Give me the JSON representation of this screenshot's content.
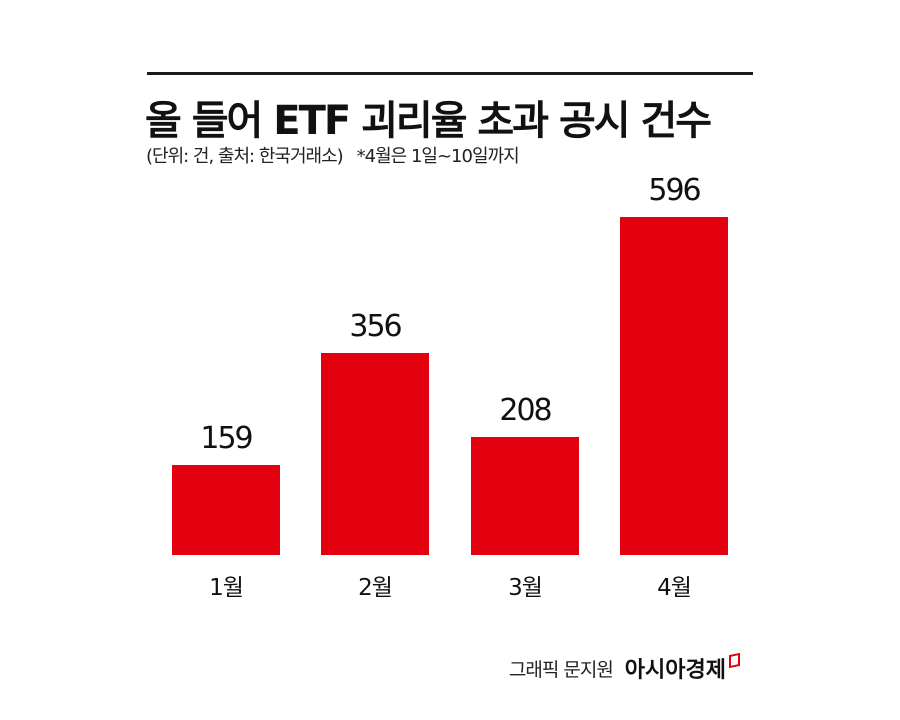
{
  "header": {
    "title": "올 들어 ETF 괴리율 초과 공시 건수",
    "subtitle": "(단위: 건, 출처: 한국거래소)",
    "note": "*4월은 1일~10일까지"
  },
  "footer": {
    "credit": "그래픽 문지원",
    "brand": "아시아경제"
  },
  "colors": {
    "bar": "#e3000f",
    "rule": "#1a1a1a"
  },
  "chart_data": {
    "type": "bar",
    "title": "올 들어 ETF 괴리율 초과 공시 건수",
    "subtitle": "(단위: 건, 출처: 한국거래소) *4월은 1일~10일까지",
    "categories": [
      "1월",
      "2월",
      "3월",
      "4월"
    ],
    "values": [
      159,
      356,
      208,
      596
    ],
    "value_labels": [
      "159",
      "356",
      "208",
      "596"
    ],
    "xlabel": "",
    "ylabel": "건",
    "grid": false,
    "legend": null
  }
}
